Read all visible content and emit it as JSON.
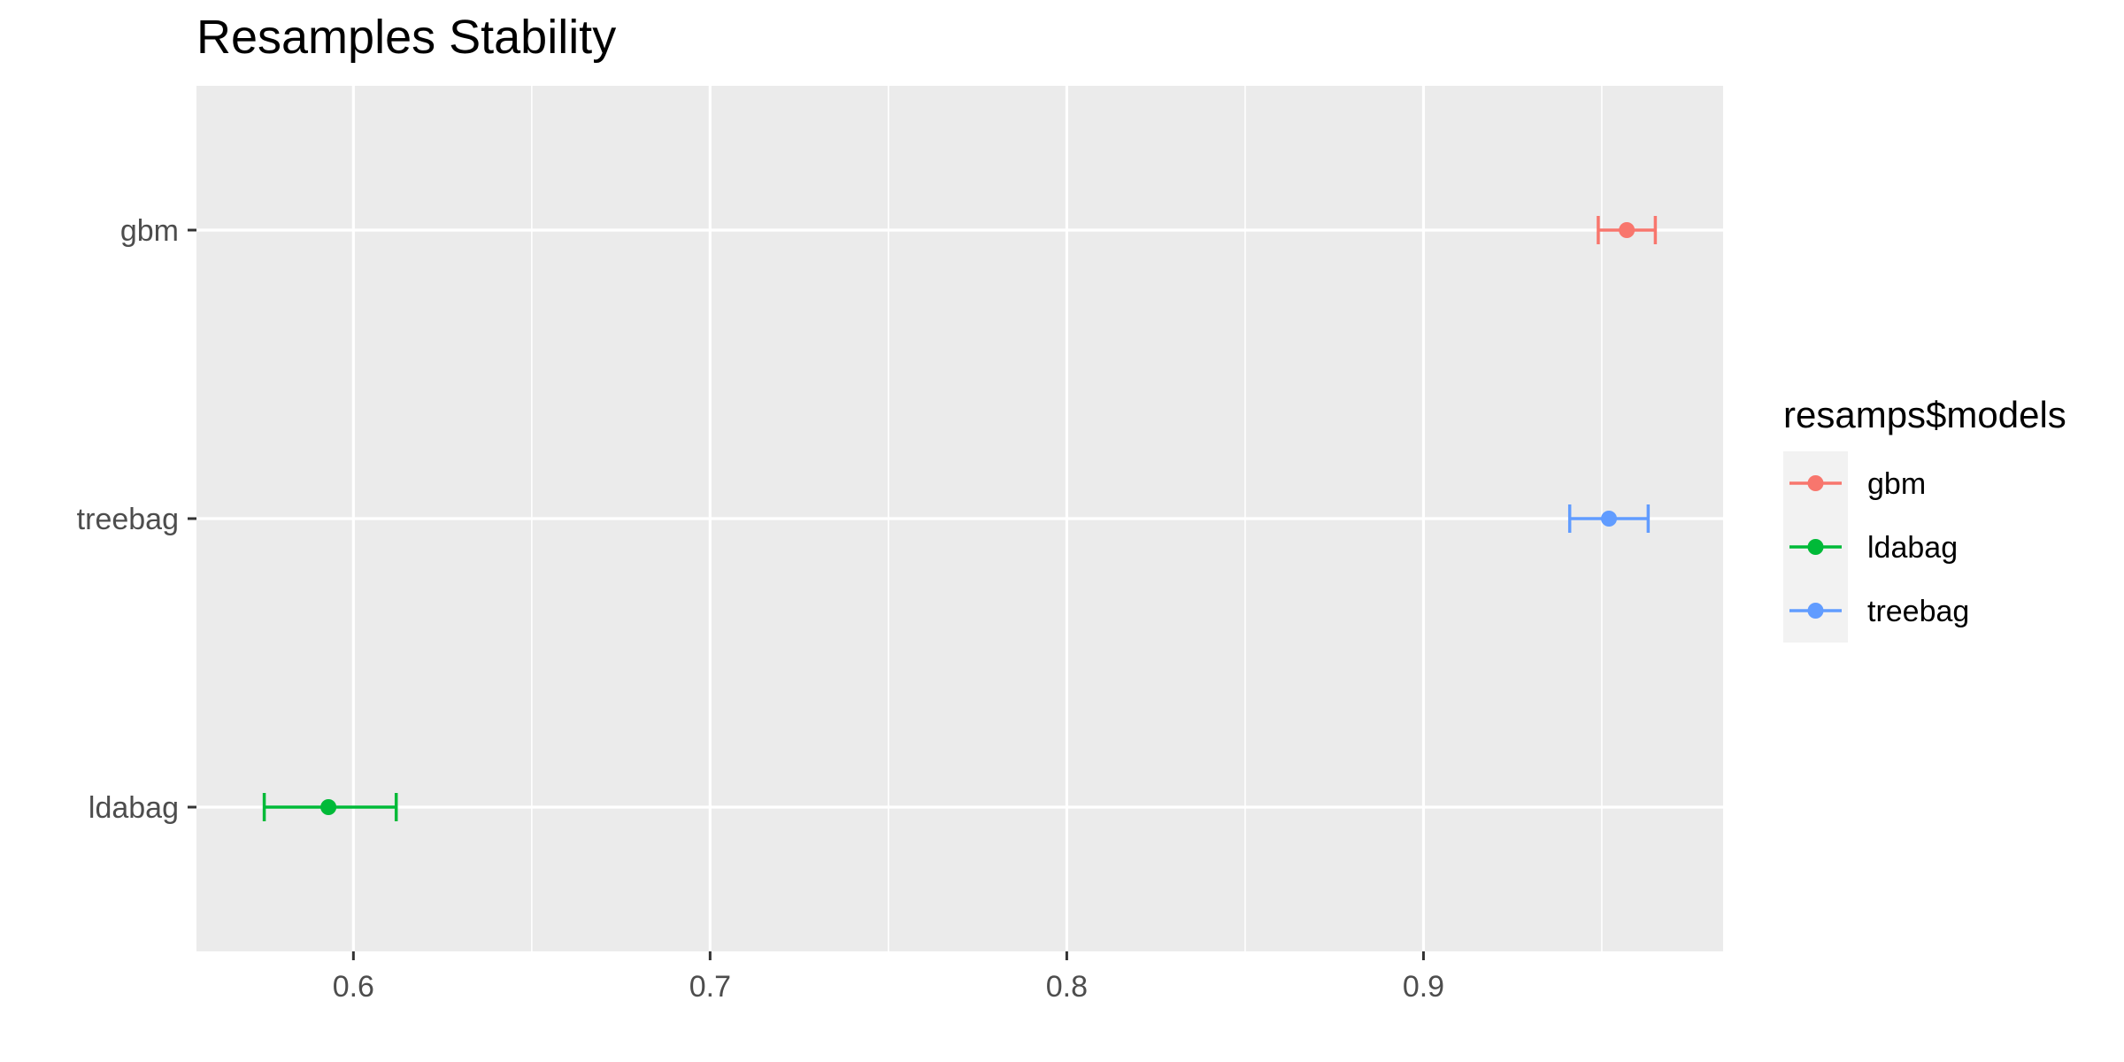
{
  "chart_data": {
    "type": "errorbar",
    "title": "Resamples Stability",
    "xlabel": "",
    "ylabel": "",
    "xlim": [
      0.556,
      0.984
    ],
    "x_ticks": [
      0.6,
      0.7,
      0.8,
      0.9
    ],
    "x_tick_labels": [
      "0.6",
      "0.7",
      "0.8",
      "0.9"
    ],
    "categories": [
      "gbm",
      "treebag",
      "ldabag"
    ],
    "grid": true,
    "legend": {
      "title": "resamps$models",
      "position": "right",
      "entries": [
        {
          "label": "gbm",
          "color": "#F8766D"
        },
        {
          "label": "ldabag",
          "color": "#00BA38"
        },
        {
          "label": "treebag",
          "color": "#619CFF"
        }
      ]
    },
    "series": [
      {
        "category": "gbm",
        "estimate": 0.957,
        "lower": 0.949,
        "upper": 0.965,
        "color": "#F8766D"
      },
      {
        "category": "treebag",
        "estimate": 0.952,
        "lower": 0.941,
        "upper": 0.963,
        "color": "#619CFF"
      },
      {
        "category": "ldabag",
        "estimate": 0.593,
        "lower": 0.575,
        "upper": 0.612,
        "color": "#00BA38"
      }
    ]
  }
}
